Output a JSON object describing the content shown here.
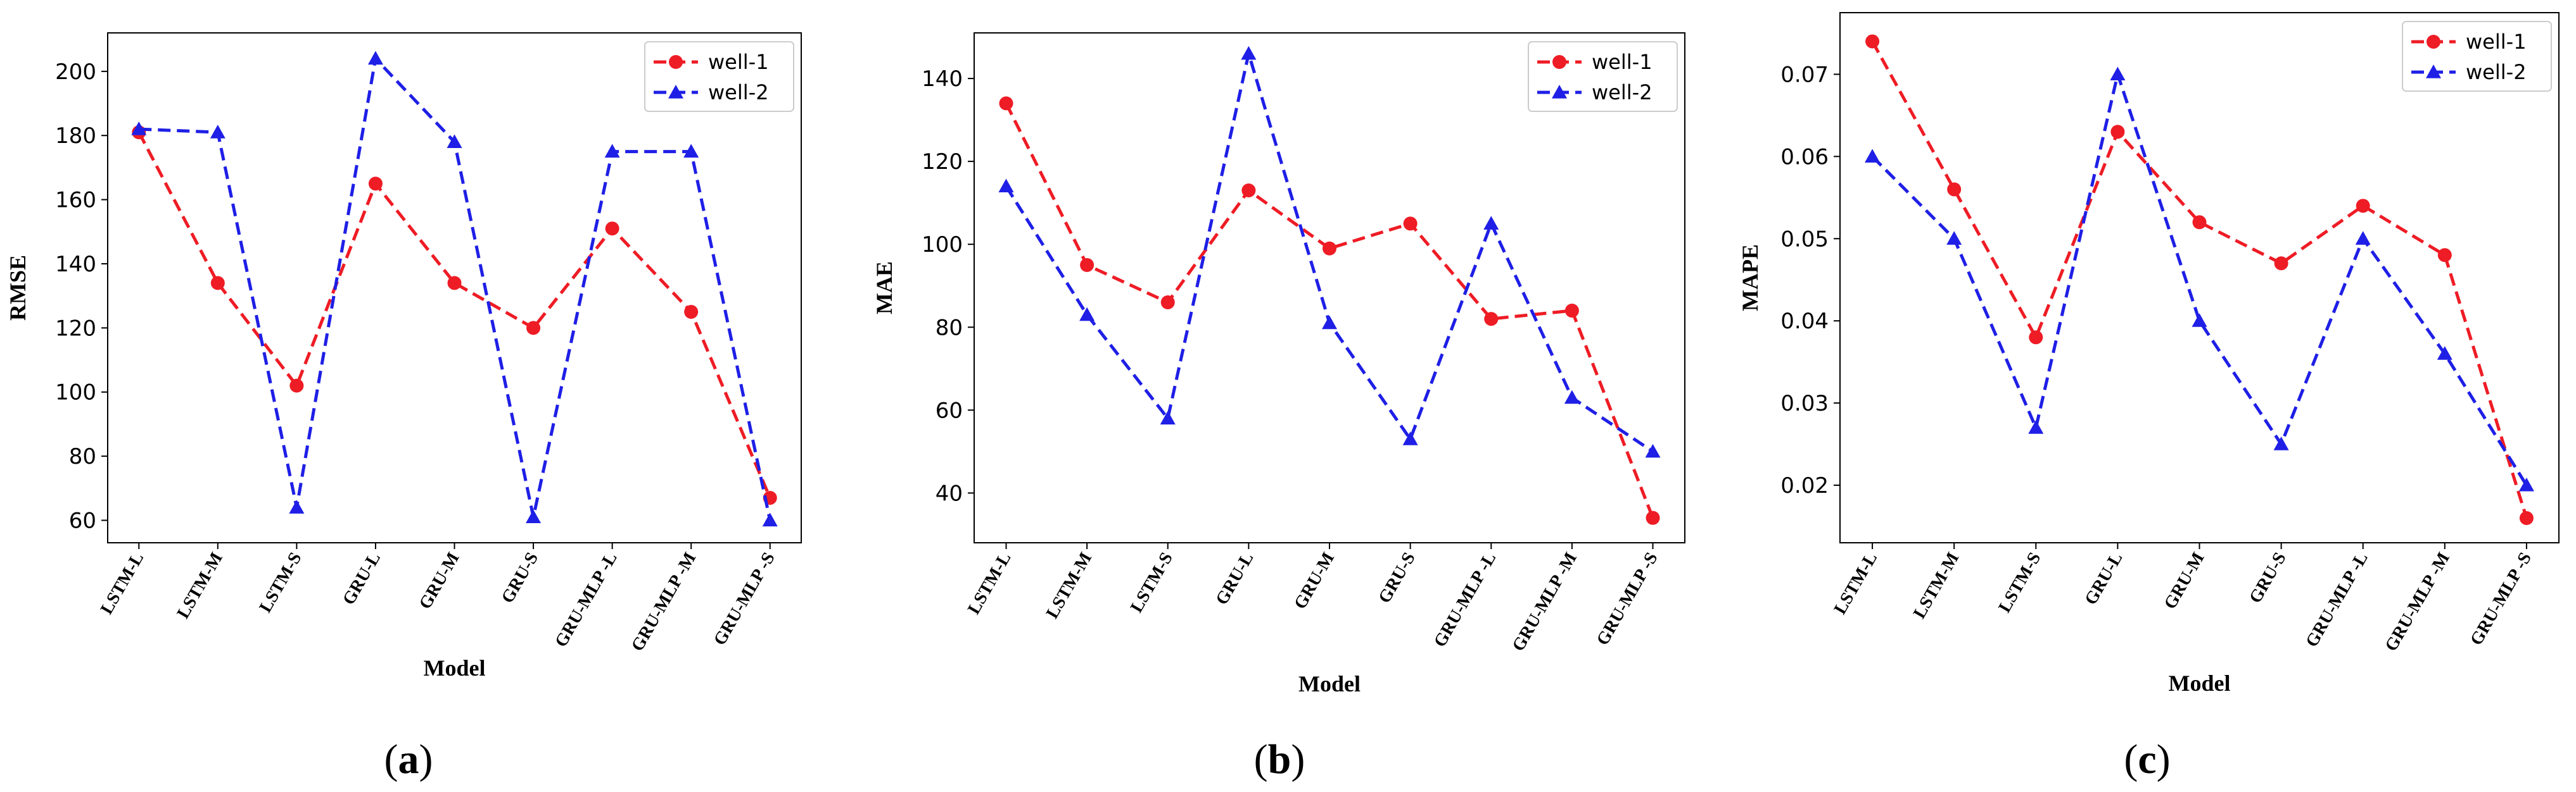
{
  "figure": {
    "panels": [
      "a",
      "b",
      "c"
    ]
  },
  "chart_data": [
    {
      "type": "line",
      "panel_caption": "(a)",
      "caption_open": "(",
      "caption_letter": "a",
      "caption_close": ")",
      "xlabel": "Model",
      "ylabel": "RMSE",
      "categories": [
        "LSTM-L",
        "LSTM-M",
        "LSTM-S",
        "GRU-L",
        "GRU-M",
        "GRU-S",
        "GRU-MLP -L",
        "GRU-MLP -M",
        "GRU-MLP -S"
      ],
      "ylim": [
        53,
        212
      ],
      "yticks": [
        60,
        80,
        100,
        120,
        140,
        160,
        180,
        200
      ],
      "ytick_labels": [
        "60",
        "80",
        "100",
        "120",
        "140",
        "160",
        "180",
        "200"
      ],
      "legend_position": "top-right",
      "series": [
        {
          "name": "well-1",
          "color": "#ee1c25",
          "marker": "circle",
          "values": [
            181,
            134,
            102,
            165,
            134,
            120,
            151,
            125,
            67
          ]
        },
        {
          "name": "well-2",
          "color": "#1f1fe6",
          "marker": "triangle",
          "values": [
            182,
            181,
            64,
            204,
            178,
            61,
            175,
            175,
            60
          ]
        }
      ]
    },
    {
      "type": "line",
      "panel_caption": "(b)",
      "caption_open": "(",
      "caption_letter": "b",
      "caption_close": ")",
      "xlabel": "Model",
      "ylabel": "MAE",
      "categories": [
        "LSTM-L",
        "LSTM-M",
        "LSTM-S",
        "GRU-L",
        "GRU-M",
        "GRU-S",
        "GRU-MLP -L",
        "GRU-MLP -M",
        "GRU-MLP -S"
      ],
      "ylim": [
        28,
        151
      ],
      "yticks": [
        40,
        60,
        80,
        100,
        120,
        140
      ],
      "ytick_labels": [
        "40",
        "60",
        "80",
        "100",
        "120",
        "140"
      ],
      "legend_position": "top-right",
      "series": [
        {
          "name": "well-1",
          "color": "#ee1c25",
          "marker": "circle",
          "values": [
            134,
            95,
            86,
            113,
            99,
            105,
            82,
            84,
            34
          ]
        },
        {
          "name": "well-2",
          "color": "#1f1fe6",
          "marker": "triangle",
          "values": [
            114,
            83,
            58,
            146,
            81,
            53,
            105,
            63,
            50
          ]
        }
      ]
    },
    {
      "type": "line",
      "panel_caption": "(c)",
      "caption_open": "(",
      "caption_letter": "c",
      "caption_close": ")",
      "xlabel": "Model",
      "ylabel": "MAPE",
      "categories": [
        "LSTM-L",
        "LSTM-M",
        "LSTM-S",
        "GRU-L",
        "GRU-M",
        "GRU-S",
        "GRU-MLP -L",
        "GRU-MLP -M",
        "GRU-MLP -S"
      ],
      "ylim": [
        0.013,
        0.0775
      ],
      "yticks": [
        0.02,
        0.03,
        0.04,
        0.05,
        0.06,
        0.07
      ],
      "ytick_labels": [
        "0.02",
        "0.03",
        "0.04",
        "0.05",
        "0.06",
        "0.07"
      ],
      "legend_position": "top-right",
      "series": [
        {
          "name": "well-1",
          "color": "#ee1c25",
          "marker": "circle",
          "values": [
            0.074,
            0.056,
            0.038,
            0.063,
            0.052,
            0.047,
            0.054,
            0.048,
            0.016
          ]
        },
        {
          "name": "well-2",
          "color": "#1f1fe6",
          "marker": "triangle",
          "values": [
            0.06,
            0.05,
            0.027,
            0.07,
            0.04,
            0.025,
            0.05,
            0.036,
            0.02
          ]
        }
      ]
    }
  ]
}
